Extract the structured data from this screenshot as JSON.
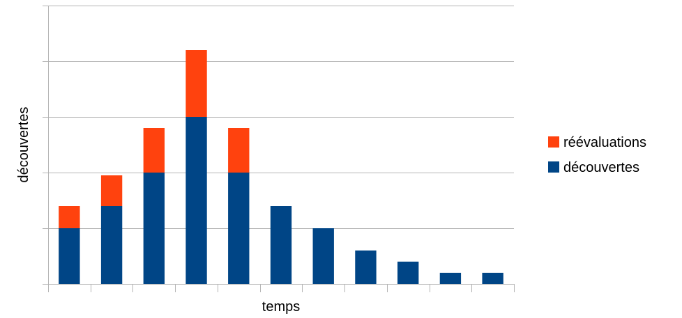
{
  "chart_data": {
    "type": "bar",
    "stacked": true,
    "title": "",
    "xlabel": "temps",
    "ylabel": "découvertes",
    "ylim": [
      0,
      10
    ],
    "grid": true,
    "legend_position": "right",
    "categories": [
      "",
      "",
      "",
      "",
      "",
      "",
      "",
      "",
      "",
      "",
      ""
    ],
    "series": [
      {
        "name": "découvertes",
        "color": "#004586",
        "values": [
          2,
          2.8,
          4,
          6,
          4,
          2.8,
          2,
          1.2,
          0.8,
          0.4,
          0.4
        ]
      },
      {
        "name": "réévaluations",
        "color": "#ff420e",
        "values": [
          0.8,
          1.1,
          1.6,
          2.4,
          1.6,
          0,
          0,
          0,
          0,
          0,
          0
        ]
      }
    ]
  }
}
